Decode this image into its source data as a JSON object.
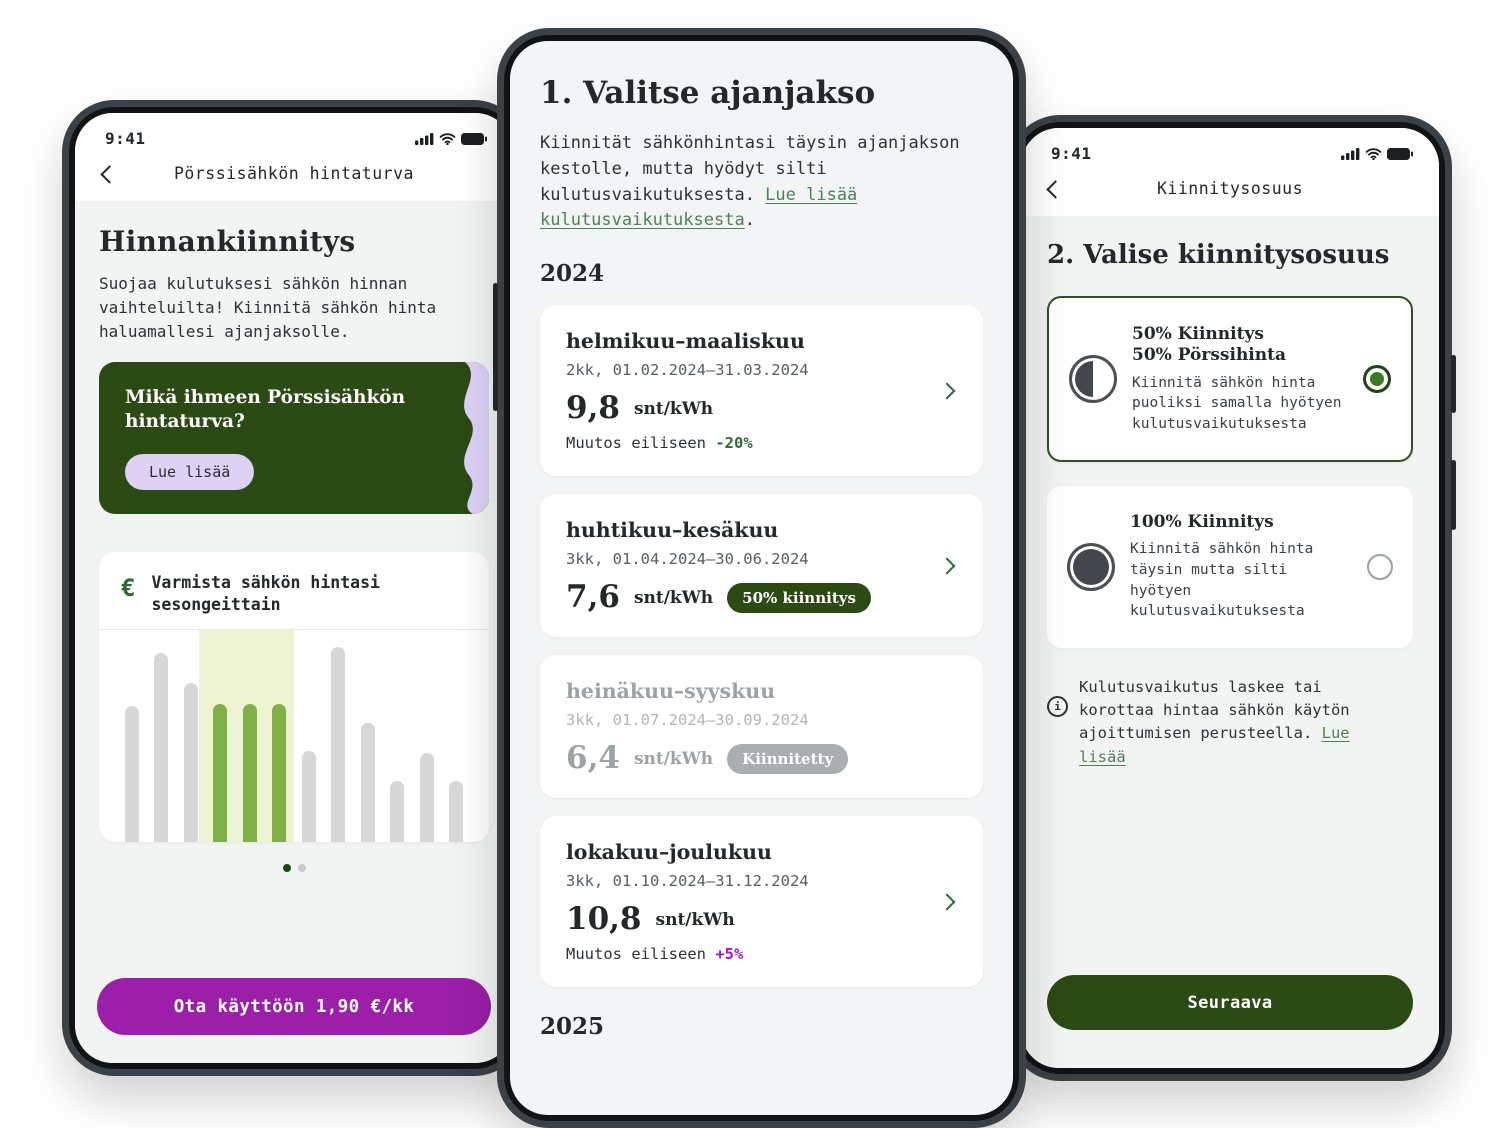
{
  "left_phone": {
    "status_time": "9:41",
    "nav_title": "Pörssisähkön hintaturva",
    "heading": "Hinnankiinnitys",
    "body_text": "Suojaa kulutuksesi sähkön hinnan vaihteluilta! Kiinnitä sähkön hinta haluamallesi ajanjaksolle.",
    "promo_card": {
      "title": "Mikä ihmeen Pörssisähkön hintaturva?",
      "cta_label": "Lue lisää"
    },
    "chart_card": {
      "euro_glyph": "€",
      "title": "Varmista sähkön hintasi sesongeittain"
    },
    "carousel": {
      "active_dot": 1,
      "total_dots": 2
    },
    "cta_label": "Ota käyttöön 1,90 €/kk"
  },
  "chart_data": {
    "type": "bar",
    "title": "Varmista sähkön hintasi sesongeittain",
    "xlabel": "",
    "ylabel": "",
    "values": [
      64,
      89,
      75,
      65,
      65,
      65,
      43,
      92,
      56,
      29,
      42,
      29
    ],
    "highlight_range": [
      3,
      5
    ],
    "bar_color": "#d5d7d8",
    "highlight_bar_color": "#7fb144",
    "highlight_band_color": "#eef3d4",
    "legend": "none",
    "grid": false
  },
  "middle_phone": {
    "heading": "1. Valitse ajanjakso",
    "intro_text": "Kiinnität sähkönhintasi täysin ajanjakson kestolle, mutta hyödyt silti kulutusvaikutuksesta. ",
    "intro_link": "Lue lisää kulutusvaikutuksesta",
    "intro_suffix": ".",
    "year_top": "2024",
    "year_bottom": "2025",
    "cards": [
      {
        "title": "helmikuu–maaliskuu",
        "subtitle": "2kk, 01.02.2024–31.03.2024",
        "price": "9,8",
        "unit": "snt/kWh",
        "note": "Muutos eiliseen",
        "note_value": "-20%"
      },
      {
        "title": "huhtikuu–kesäkuu",
        "subtitle": "3kk, 01.04.2024–30.06.2024",
        "price": "7,6",
        "unit": "snt/kWh",
        "badge": "50% kiinnitys"
      },
      {
        "title": "heinäkuu–syyskuu",
        "subtitle": "3kk, 01.07.2024–30.09.2024",
        "price": "6,4",
        "unit": "snt/kWh",
        "badge": "Kiinnitetty"
      },
      {
        "title": "lokakuu–joulukuu",
        "subtitle": "3kk, 01.10.2024–31.12.2024",
        "price": "10,8",
        "unit": "snt/kWh",
        "note": "Muutos eiliseen",
        "note_value": "+5%"
      }
    ]
  },
  "right_phone": {
    "status_time": "9:41",
    "nav_title": "Kiinnitysosuus",
    "heading": "2. Valise kiinnitysosuus",
    "options": [
      {
        "title_line1": "50% Kiinnitys",
        "title_line2": "50% Pörssihinta",
        "desc": "Kiinnitä sähkön hinta puoliksi samalla hyötyen kulutusvaikutuksesta",
        "selected": true
      },
      {
        "title_line1": "100% Kiinnitys",
        "title_line2": "",
        "desc": "Kiinnitä sähkön hinta täysin mutta silti hyötyen kulutusvaikutuksesta",
        "selected": false
      }
    ],
    "info_icon_glyph": "i",
    "info_text": "Kulutusvaikutus laskee tai korottaa hintaa sähkön käytön ajoittumisen perusteella. ",
    "info_link": "Lue lisää",
    "cta_label": "Seuraava"
  },
  "icons": {
    "back": "chevron-left",
    "forward": "chevron-right",
    "status": [
      "cellular-signal",
      "wifi",
      "battery"
    ],
    "euro": "euro-sign",
    "info": "info-circle"
  },
  "colors": {
    "dark_green": "#2c4a13",
    "purple_cta": "#9b1fa8",
    "lavender": "#ddd2f6",
    "link_green": "#4f8157",
    "bar_green": "#7fb144",
    "band_yellow_green": "#eef3d4",
    "badge_gray": "#a9aeb1",
    "change_down_green": "#2f6b33",
    "change_up_purple": "#a316c9"
  }
}
